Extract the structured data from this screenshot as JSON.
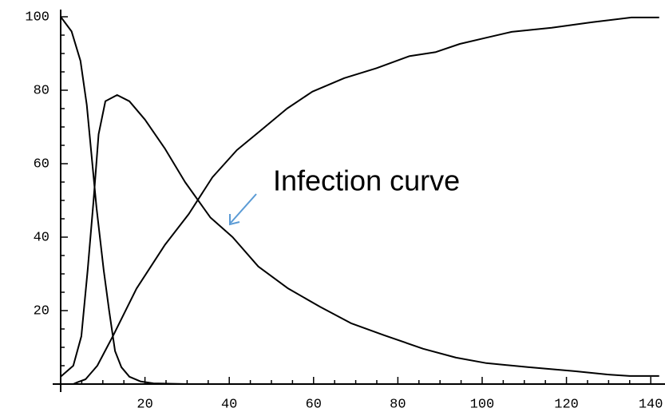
{
  "chart_data": {
    "type": "line",
    "annotation": "Infection curve",
    "series": [
      {
        "color": "#000000",
        "x": [
          0,
          2.6,
          4.7,
          6.2,
          8.5,
          10.2,
          11.5,
          12.9,
          14.4,
          16.3,
          19,
          22,
          30,
          60,
          100,
          142
        ],
        "values": [
          100,
          96,
          88,
          76,
          48,
          31,
          20,
          9,
          4.6,
          2,
          0.7,
          0.2,
          0,
          0,
          0,
          0
        ]
      },
      {
        "color": "#000000",
        "x": [
          0,
          3,
          4.9,
          6.4,
          7.8,
          9,
          10.6,
          13.4,
          16.3,
          20,
          24.8,
          29.5,
          35.5,
          40.8,
          46.9,
          54,
          61.6,
          69,
          76.7,
          86,
          93.8,
          101,
          110.8,
          122,
          129.7,
          135,
          142
        ],
        "values": [
          2,
          5,
          13,
          31,
          50,
          68,
          77,
          78.7,
          77,
          72,
          64,
          55,
          45.4,
          40,
          32,
          26,
          21,
          16.5,
          13.3,
          9.6,
          7.2,
          5.7,
          4.6,
          3.5,
          2.6,
          2.2,
          2.2
        ]
      },
      {
        "color": "#000000",
        "x": [
          0,
          3,
          4,
          5.9,
          8.7,
          12.5,
          18,
          24.8,
          30.4,
          36,
          41.8,
          47.4,
          53.7,
          59.7,
          67.3,
          74.9,
          82.8,
          89,
          94.7,
          101,
          107,
          116.5,
          126,
          135.4,
          142
        ],
        "values": [
          0,
          0,
          0.5,
          1.3,
          5,
          13.3,
          26,
          38,
          46.3,
          56.3,
          63.7,
          69,
          75,
          79.6,
          83.3,
          86,
          89.3,
          90.4,
          92.6,
          94.3,
          95.9,
          97,
          98.5,
          99.8,
          99.8
        ]
      }
    ],
    "xlim": [
      0,
      143
    ],
    "ylim": [
      0,
      102
    ],
    "xticks": [
      20,
      40,
      60,
      80,
      100,
      120,
      140
    ],
    "yticks": [
      20,
      40,
      60,
      80,
      100
    ],
    "xminor": [
      5,
      10,
      15,
      25,
      30,
      35,
      45,
      50,
      55,
      65,
      70,
      75,
      85,
      90,
      95,
      105,
      110,
      115,
      125,
      130,
      135
    ],
    "yminor": [
      5,
      10,
      15,
      25,
      30,
      35,
      45,
      50,
      55,
      65,
      70,
      75,
      85,
      90,
      95
    ]
  }
}
